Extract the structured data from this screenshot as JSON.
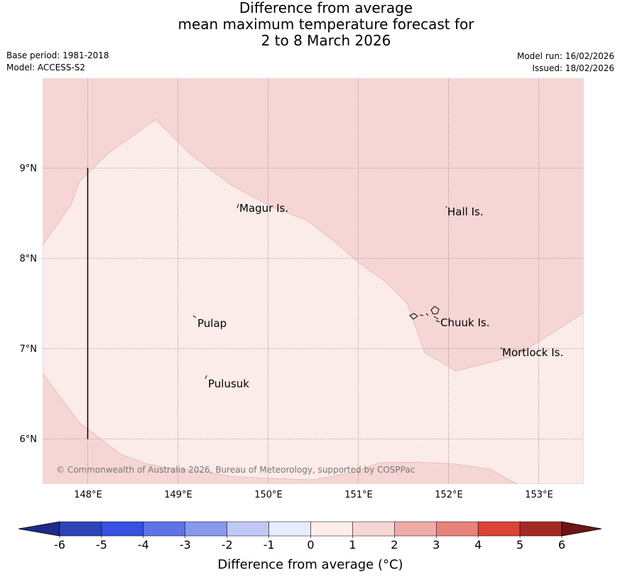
{
  "title": {
    "line1": "Difference from average",
    "line2": "mean maximum temperature forecast for",
    "line3": "2 to 8 March 2026"
  },
  "meta": {
    "base_period": "Base period: 1981-2018",
    "model": "Model: ACCESS-S2",
    "model_run": "Model run: 16/02/2026",
    "issued": "Issued: 18/02/2026"
  },
  "map": {
    "lon_labels": [
      "148°E",
      "149°E",
      "150°E",
      "151°E",
      "152°E",
      "153°E"
    ],
    "lat_labels": [
      "9°N",
      "8°N",
      "7°N",
      "6°N"
    ],
    "places": [
      "Magur Is.",
      "Hall Is.",
      "Pulap",
      "Chuuk Is.",
      "Mortlock Is.",
      "Pulusuk"
    ],
    "copyright": "© Commonwealth of Australia 2026, Bureau of Meteorology, supported by COSPPac",
    "region_colors": {
      "zero_to_one": "#fbebe9",
      "one_to_two": "#f5d6d4"
    }
  },
  "colorbar": {
    "ticks": [
      "-6",
      "-5",
      "-4",
      "-3",
      "-2",
      "-1",
      "0",
      "1",
      "2",
      "3",
      "4",
      "5",
      "6"
    ],
    "colors": [
      "#1e2a8a",
      "#2d44b9",
      "#3650e2",
      "#5d73e6",
      "#8899ec",
      "#c0c9f4",
      "#e8ebfb",
      "#fdeeec",
      "#f5d6d4",
      "#eeaba7",
      "#e8827b",
      "#db4437",
      "#a52a24",
      "#6e1515"
    ],
    "title": "Difference from average (°C)"
  }
}
